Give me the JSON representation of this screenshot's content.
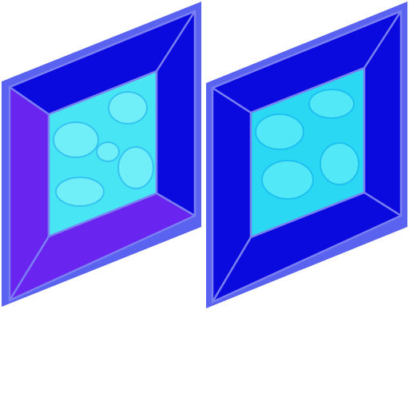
{
  "sprite_sheet": {
    "background": "#ffffff",
    "tiles": [
      {
        "name": "window-tile-left",
        "colors": {
          "outline": "#5a63f0",
          "bevel_top": "#0a0ade",
          "bevel_right": "#0a0ade",
          "bevel_bottom": "#6a24ef",
          "bevel_left": "#6a24ef",
          "glass": "#48e6f4",
          "glass_highlight": "#7ff2fb",
          "glass_shadow": "#2fb8f0",
          "edge_line": "#7a80f2"
        }
      },
      {
        "name": "window-tile-right",
        "colors": {
          "outline": "#5a63f0",
          "bevel_top": "#0a0ade",
          "bevel_right": "#0a0ade",
          "bevel_bottom": "#0a0ade",
          "bevel_left": "#0a0ade",
          "glass": "#2ad8f4",
          "glass_highlight": "#62eefa",
          "glass_shadow": "#1ab8ee",
          "edge_line": "#7a80f2"
        }
      }
    ]
  }
}
